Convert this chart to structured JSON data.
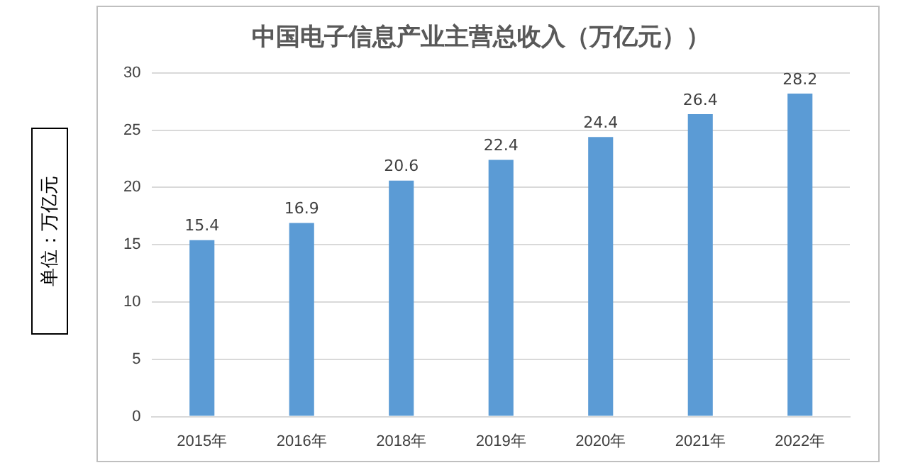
{
  "chart_data": {
    "type": "bar",
    "title": "中国电子信息产业主营总收入（万亿元））",
    "ylabel": "单位：万亿元",
    "categories": [
      "2015年",
      "2016年",
      "2018年",
      "2019年",
      "2020年",
      "2021年",
      "2022年"
    ],
    "values": [
      15.4,
      16.9,
      20.6,
      22.4,
      24.4,
      26.4,
      28.2
    ],
    "color": "#5b9bd5",
    "ylim": [
      0,
      30
    ],
    "yticks": [
      0,
      5,
      10,
      15,
      20,
      25,
      30
    ],
    "grid": "y",
    "data_labels": true,
    "legend": false
  }
}
